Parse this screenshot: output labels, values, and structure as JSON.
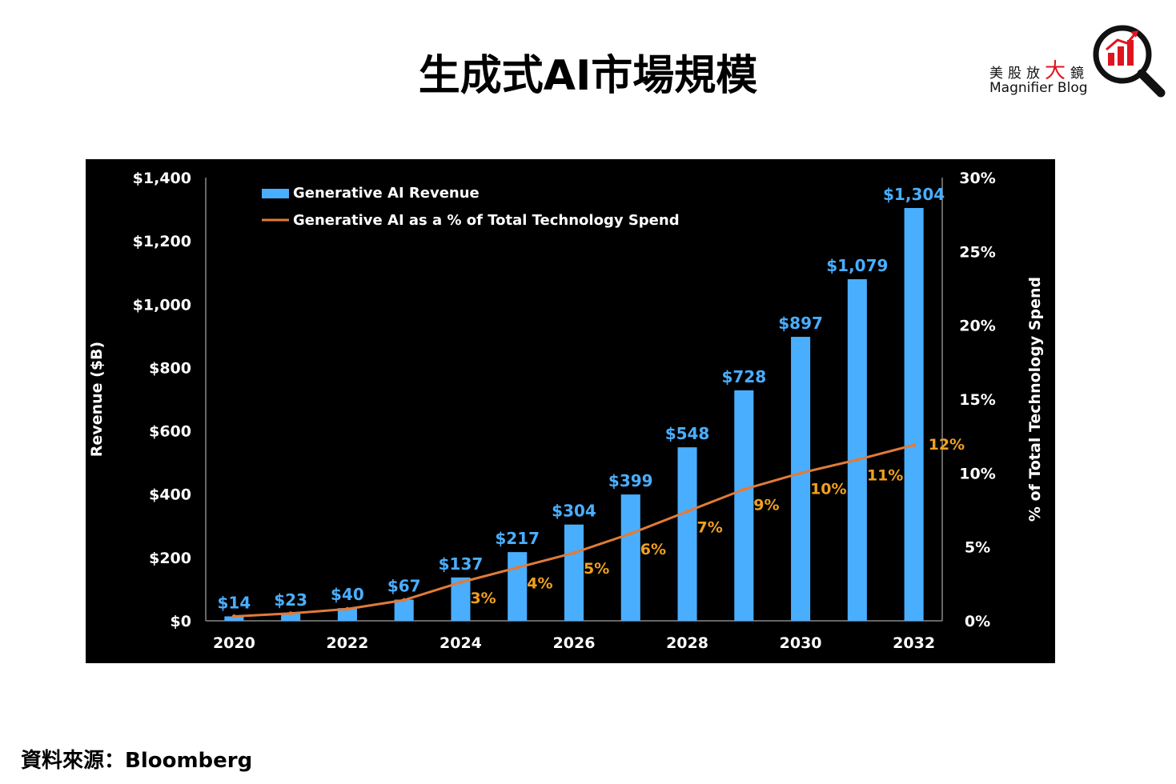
{
  "page": {
    "title": "生成式AI市場規模",
    "source": "資料來源：Bloomberg"
  },
  "logo": {
    "cn_prefix": "美股放",
    "cn_big": "大",
    "cn_suffix": "鏡",
    "en": "Magnifier Blog",
    "icon": "magnifier-bar-chart-icon",
    "accent_color": "#e0141e"
  },
  "chart_data": {
    "type": "bar",
    "x": [
      2020,
      2021,
      2022,
      2023,
      2024,
      2025,
      2026,
      2027,
      2028,
      2029,
      2030,
      2031,
      2032
    ],
    "x_tick_labels": [
      "2020",
      "2022",
      "2024",
      "2026",
      "2028",
      "2030",
      "2032"
    ],
    "series": [
      {
        "name": "Generative AI Revenue",
        "type": "bar",
        "axis": "left",
        "color": "#4aaeff",
        "values": [
          14,
          23,
          40,
          67,
          137,
          217,
          304,
          399,
          548,
          728,
          897,
          1079,
          1304
        ],
        "labels": [
          "$14",
          "$23",
          "$40",
          "$67",
          "$137",
          "$217",
          "$304",
          "$399",
          "$548",
          "$728",
          "$897",
          "$1,079",
          "$1,304"
        ]
      },
      {
        "name": "Generative AI as a % of Total Technology Spend",
        "type": "line",
        "axis": "right",
        "color": "#e07b39",
        "values": [
          0.3,
          0.5,
          0.8,
          1.4,
          2.6,
          3.6,
          4.6,
          5.9,
          7.4,
          8.9,
          10.0,
          10.9,
          11.9
        ],
        "labels": [
          "",
          "",
          "",
          "",
          "3%",
          "4%",
          "5%",
          "6%",
          "7%",
          "9%",
          "10%",
          "11%",
          "12%"
        ]
      }
    ],
    "y_left": {
      "label": "Revenue ($B)",
      "range": [
        0,
        1400
      ],
      "ticks": [
        0,
        200,
        400,
        600,
        800,
        1000,
        1200,
        1400
      ],
      "tick_labels": [
        "$0",
        "$200",
        "$400",
        "$600",
        "$800",
        "$1,000",
        "$1,200",
        "$1,400"
      ]
    },
    "y_right": {
      "label": "% of Total Technology Spend",
      "range": [
        0,
        30
      ],
      "ticks": [
        0,
        5,
        10,
        15,
        20,
        25,
        30
      ],
      "tick_labels": [
        "0%",
        "5%",
        "10%",
        "15%",
        "20%",
        "25%",
        "30%"
      ]
    },
    "grid": false,
    "legend_position": "top-left",
    "background": "#000000",
    "text_color": "#ffffff",
    "pct_label_color": "#f0a020"
  }
}
